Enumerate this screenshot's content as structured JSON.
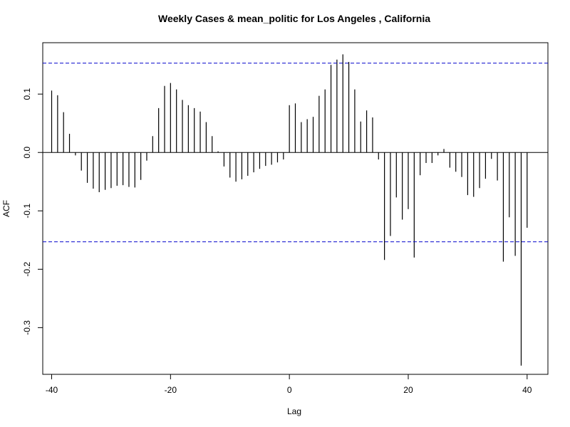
{
  "chart_data": {
    "type": "bar",
    "title": "Weekly Cases & mean_politic for Los Angeles , California",
    "xlabel": "Lag",
    "ylabel": "ACF",
    "xlim": [
      -41.5,
      43.5
    ],
    "ylim": [
      -0.38,
      0.188
    ],
    "x_ticks": [
      -40,
      -20,
      0,
      20,
      40
    ],
    "x_tick_labels": [
      "-40",
      "-20",
      "0",
      "20",
      "40"
    ],
    "y_ticks": [
      -0.3,
      -0.2,
      -0.1,
      0.0,
      0.1
    ],
    "y_tick_labels": [
      "-0.3",
      "-0.2",
      "-0.1",
      "0.0",
      "0.1"
    ],
    "confidence_limit": 0.153,
    "grid": false,
    "legend": "none",
    "colors": {
      "bars": "#000000",
      "confidence": "#0000cc",
      "zero_line": "#000000"
    },
    "lags": [
      -40,
      -39,
      -38,
      -37,
      -36,
      -35,
      -34,
      -33,
      -32,
      -31,
      -30,
      -29,
      -28,
      -27,
      -26,
      -25,
      -24,
      -23,
      -22,
      -21,
      -20,
      -19,
      -18,
      -17,
      -16,
      -15,
      -14,
      -13,
      -12,
      -11,
      -10,
      -9,
      -8,
      -7,
      -6,
      -5,
      -4,
      -3,
      -2,
      -1,
      0,
      1,
      2,
      3,
      4,
      5,
      6,
      7,
      8,
      9,
      10,
      11,
      12,
      13,
      14,
      15,
      16,
      17,
      18,
      19,
      20,
      21,
      22,
      23,
      24,
      25,
      26,
      27,
      28,
      29,
      30,
      31,
      32,
      33,
      34,
      35,
      36,
      37,
      38,
      39,
      40
    ],
    "values": [
      0.106,
      0.098,
      0.069,
      0.032,
      -0.005,
      -0.031,
      -0.052,
      -0.062,
      -0.068,
      -0.064,
      -0.061,
      -0.057,
      -0.056,
      -0.059,
      -0.06,
      -0.047,
      -0.014,
      0.028,
      0.076,
      0.114,
      0.119,
      0.108,
      0.09,
      0.081,
      0.076,
      0.07,
      0.052,
      0.028,
      0.002,
      -0.024,
      -0.043,
      -0.05,
      -0.046,
      -0.04,
      -0.034,
      -0.028,
      -0.023,
      -0.021,
      -0.017,
      -0.012,
      0.081,
      0.084,
      0.052,
      0.057,
      0.061,
      0.097,
      0.108,
      0.15,
      0.159,
      0.168,
      0.155,
      0.108,
      0.053,
      0.072,
      0.06,
      -0.012,
      -0.184,
      -0.143,
      -0.077,
      -0.115,
      -0.097,
      -0.18,
      -0.039,
      -0.018,
      -0.018,
      -0.005,
      0.006,
      -0.026,
      -0.033,
      -0.042,
      -0.073,
      -0.076,
      -0.061,
      -0.045,
      -0.011,
      -0.048,
      -0.187,
      -0.111,
      -0.177,
      -0.365,
      -0.129
    ]
  }
}
